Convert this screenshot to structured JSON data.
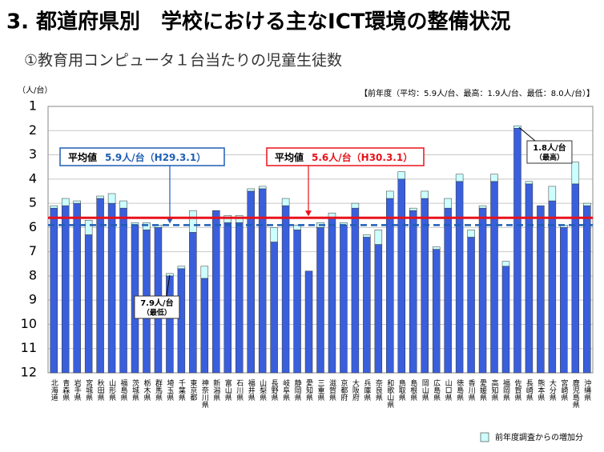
{
  "chart_data": {
    "type": "bar",
    "title": "3. 都道府県別　学校における主なICT環境の整備状況",
    "subtitle": "①教育用コンピュータ１台当たりの児童生徒数",
    "y_unit": "（人/台）",
    "note": "【前年度（平均：5.9人/台、最高：1.9人/台、最低：8.0人/台）】",
    "categories": [
      "北海道",
      "青森県",
      "岩手県",
      "宮城県",
      "秋田県",
      "山形県",
      "福島県",
      "茨城県",
      "栃木県",
      "群馬県",
      "埼玉県",
      "千葉県",
      "東京都",
      "神奈川県",
      "新潟県",
      "富山県",
      "石川県",
      "福井県",
      "山梨県",
      "長野県",
      "岐阜県",
      "静岡県",
      "愛知県",
      "三重県",
      "滋賀県",
      "京都府",
      "大阪府",
      "兵庫県",
      "奈良県",
      "和歌山県",
      "鳥取県",
      "島根県",
      "岡山県",
      "広島県",
      "山口県",
      "徳島県",
      "香川県",
      "愛媛県",
      "高知県",
      "福岡県",
      "佐賀県",
      "長崎県",
      "熊本県",
      "大分県",
      "宮崎県",
      "鹿児島県",
      "沖縄県"
    ],
    "series": [
      {
        "color": "#3a5fdc",
        "values": [
          5.1,
          4.8,
          4.9,
          5.7,
          4.7,
          4.6,
          4.9,
          5.8,
          5.8,
          5.9,
          7.9,
          7.6,
          5.3,
          7.6,
          5.3,
          5.5,
          5.5,
          4.4,
          4.3,
          6.0,
          4.8,
          5.9,
          7.8,
          5.8,
          5.4,
          5.8,
          5.0,
          6.3,
          6.1,
          4.5,
          3.7,
          5.2,
          4.5,
          6.8,
          4.8,
          3.8,
          6.1,
          5.1,
          3.8,
          7.4,
          1.8,
          4.1,
          5.1,
          4.3,
          5.9,
          3.3,
          5.0
        ]
      },
      {
        "name": "前年度調査からの増加分",
        "color": "#ccffff",
        "values": [
          5.2,
          5.1,
          5.0,
          6.3,
          4.8,
          5.0,
          5.2,
          5.9,
          6.1,
          6.0,
          8.0,
          7.7,
          6.2,
          8.1,
          5.3,
          5.8,
          5.8,
          4.5,
          4.4,
          6.6,
          5.1,
          6.1,
          7.8,
          6.0,
          5.6,
          5.9,
          5.2,
          6.4,
          6.7,
          4.8,
          4.0,
          5.3,
          4.8,
          6.9,
          5.2,
          4.1,
          6.4,
          5.2,
          4.1,
          7.6,
          1.9,
          4.2,
          5.1,
          4.9,
          6.0,
          4.2,
          5.1
        ]
      }
    ],
    "averages": [
      {
        "label": "平均値",
        "value_label": "5.9人/台（H29.3.1）",
        "value": 5.9,
        "color": "#1f5fb4"
      },
      {
        "label": "平均値",
        "value_label": "5.6人/台（H30.3.1）",
        "value": 5.6,
        "color": "#e8121b"
      }
    ],
    "callouts": [
      {
        "text": "1.8人/台",
        "sub": "（最高）",
        "index": 40
      },
      {
        "text": "7.9人/台",
        "sub": "（最低）",
        "index": 10
      }
    ],
    "ylim": [
      1,
      12
    ],
    "yticks": [
      1,
      2,
      3,
      4,
      5,
      6,
      7,
      8,
      9,
      10,
      11,
      12
    ],
    "y_inverted": true,
    "grid": true
  }
}
